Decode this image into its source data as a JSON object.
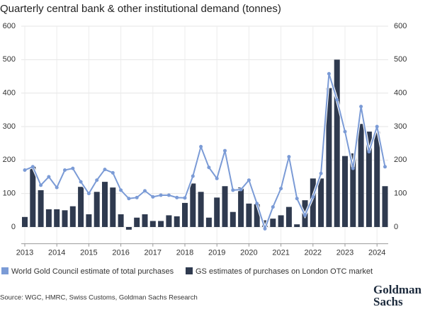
{
  "chart_data": {
    "type": "combo",
    "title": "Quarterly central bank & other institutional demand (tonnes)",
    "categories": [
      "2013",
      null,
      null,
      null,
      "2014",
      null,
      null,
      null,
      "2015",
      null,
      null,
      null,
      "2016",
      null,
      null,
      null,
      "2017",
      null,
      null,
      null,
      "2018",
      null,
      null,
      null,
      "2019",
      null,
      null,
      null,
      "2020",
      null,
      null,
      null,
      "2021",
      null,
      null,
      null,
      "2022",
      null,
      null,
      null,
      "2023",
      null,
      null,
      null,
      "2024",
      null
    ],
    "series": [
      {
        "name": "World Gold Council estimate of total purchases",
        "type": "line",
        "color": "#7b9bd6",
        "values": [
          170,
          180,
          125,
          150,
          118,
          170,
          175,
          135,
          100,
          140,
          172,
          162,
          110,
          85,
          88,
          108,
          90,
          95,
          95,
          88,
          87,
          152,
          240,
          178,
          145,
          228,
          110,
          112,
          140,
          70,
          -5,
          60,
          115,
          210,
          85,
          35,
          90,
          160,
          458,
          380,
          285,
          175,
          360,
          225,
          300,
          180
        ]
      },
      {
        "name": "GS estimates of purchases on London OTC market",
        "type": "bar",
        "color": "#2f3a4f",
        "values": [
          30,
          180,
          110,
          53,
          53,
          50,
          62,
          120,
          38,
          105,
          135,
          118,
          38,
          -8,
          28,
          38,
          18,
          18,
          35,
          32,
          72,
          130,
          105,
          28,
          88,
          122,
          45,
          118,
          70,
          68,
          20,
          25,
          35,
          60,
          8,
          80,
          145,
          145,
          415,
          500,
          212,
          220,
          308,
          285,
          285,
          122
        ]
      }
    ],
    "ylim": [
      -50,
      600
    ],
    "yticks": [
      0,
      100,
      200,
      300,
      400,
      500,
      600
    ],
    "y2lim": [
      -50,
      600
    ],
    "y2ticks": [
      0,
      100,
      200,
      300,
      400,
      500,
      600
    ],
    "grid": true,
    "source": "Source: WGC, HMRC, Swiss Customs, Goldman Sachs Research",
    "logo": [
      "Goldman",
      "Sachs"
    ]
  }
}
